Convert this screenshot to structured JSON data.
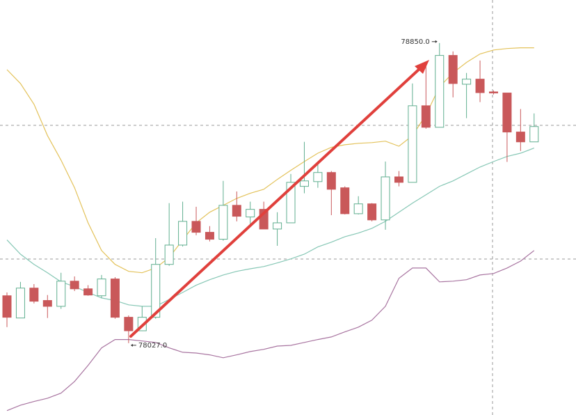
{
  "chart_data": {
    "type": "candlestick",
    "ylim": [
      77830,
      78968
    ],
    "open": [
      78157,
      78096,
      78178,
      78144,
      78128,
      78197,
      78176,
      78157,
      78203,
      78098,
      78061,
      78098,
      78243,
      78296,
      78361,
      78331,
      78312,
      78405,
      78373,
      78394,
      78340,
      78357,
      78457,
      78470,
      78495,
      78453,
      78382,
      78409,
      78365,
      78483,
      78468,
      78678,
      78619,
      78816,
      78737,
      78751,
      78716,
      78713,
      78606,
      78579
    ],
    "high": [
      78166,
      78195,
      78189,
      78159,
      78220,
      78210,
      78186,
      78214,
      78208,
      78103,
      78128,
      78315,
      78411,
      78415,
      78401,
      78348,
      78472,
      78443,
      78415,
      78415,
      78386,
      78491,
      78579,
      78520,
      78499,
      78457,
      78430,
      78411,
      78525,
      78499,
      78739,
      78797,
      78850,
      78827,
      78768,
      78802,
      78720,
      78713,
      78669,
      78657
    ],
    "low": [
      78071,
      78096,
      78136,
      78096,
      78121,
      78170,
      78157,
      78151,
      78094,
      78027,
      78060,
      78094,
      78239,
      78292,
      78323,
      78306,
      78308,
      78361,
      78348,
      78340,
      78294,
      78357,
      78438,
      78453,
      78378,
      78380,
      78380,
      78361,
      78338,
      78457,
      78468,
      78615,
      78619,
      78701,
      78644,
      78688,
      78709,
      78524,
      78554,
      78579
    ],
    "close": [
      78098,
      78178,
      78142,
      78128,
      78197,
      78176,
      78159,
      78203,
      78098,
      78061,
      78098,
      78243,
      78296,
      78361,
      78331,
      78312,
      78405,
      78375,
      78394,
      78340,
      78357,
      78468,
      78472,
      78495,
      78449,
      78382,
      78409,
      78365,
      78483,
      78468,
      78678,
      78619,
      78816,
      78739,
      78751,
      78714,
      78713,
      78606,
      78579,
      78621
    ],
    "up_color": "#5fae8f",
    "down_color": "#c9585a",
    "lines": [
      {
        "color": "#e3c25a",
        "values": [
          78777,
          78739,
          78682,
          78596,
          78529,
          78453,
          78357,
          78281,
          78243,
          78224,
          78220,
          78233,
          78262,
          78310,
          78357,
          78386,
          78405,
          78424,
          78438,
          78449,
          78476,
          78501,
          78525,
          78548,
          78564,
          78571,
          78575,
          78577,
          78581,
          78567,
          78596,
          78653,
          78730,
          78768,
          78797,
          78820,
          78831,
          78835,
          78837,
          78837
        ]
      },
      {
        "color": "#86c7b5",
        "values": [
          78310,
          78271,
          78243,
          78220,
          78195,
          78182,
          78166,
          78151,
          78144,
          78132,
          78128,
          78128,
          78147,
          78166,
          78186,
          78201,
          78214,
          78224,
          78231,
          78237,
          78247,
          78258,
          78271,
          78291,
          78304,
          78319,
          78329,
          78342,
          78361,
          78386,
          78411,
          78434,
          78457,
          78472,
          78491,
          78510,
          78525,
          78539,
          78548,
          78562
        ]
      },
      {
        "color": "#a874a0",
        "values": [
          77842,
          77857,
          77867,
          77876,
          77890,
          77922,
          77966,
          78014,
          78037,
          78037,
          78033,
          78029,
          78014,
          78002,
          78000,
          77995,
          77987,
          77995,
          78004,
          78010,
          78019,
          78021,
          78029,
          78037,
          78044,
          78058,
          78071,
          78090,
          78128,
          78205,
          78233,
          78233,
          78195,
          78197,
          78201,
          78214,
          78218,
          78233,
          78252,
          78281
        ]
      }
    ],
    "annotations": [
      "78850.0",
      "78027.0"
    ]
  }
}
